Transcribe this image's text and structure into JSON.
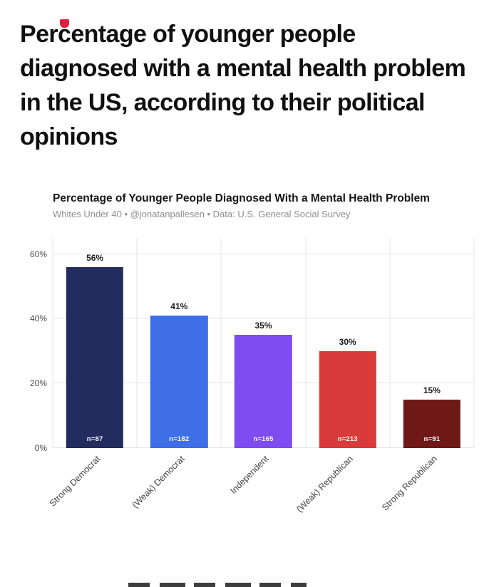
{
  "page": {
    "headline": "Percentage of younger people diagnosed with a mental health problem in the US, according to their political opinions"
  },
  "chart": {
    "title": "Percentage of Younger People Diagnosed With a Mental Health Problem",
    "subtitle": "Whites Under 40 • @jonatanpallesen • Data: U.S. General Social Survey"
  },
  "chart_data": {
    "type": "bar",
    "title": "Percentage of Younger People Diagnosed With a Mental Health Problem",
    "subtitle": "Whites Under 40 • @jonatanpallesen • Data: U.S. General Social Survey",
    "categories": [
      "Strong Democrat",
      "(Weak) Democrat",
      "Independent",
      "(Weak) Republican",
      "Strong Republican"
    ],
    "values": [
      56,
      41,
      35,
      30,
      15
    ],
    "value_labels": [
      "56%",
      "41%",
      "35%",
      "30%",
      "15%"
    ],
    "n_labels": [
      "n=87",
      "n=182",
      "n=165",
      "n=213",
      "n=91"
    ],
    "bar_colors": [
      "#232c5e",
      "#3f6fe6",
      "#7e4cf0",
      "#d93a3a",
      "#6f1818"
    ],
    "ytick_values": [
      0,
      20,
      40,
      60
    ],
    "ytick_labels": [
      "0%",
      "20%",
      "40%",
      "60%"
    ],
    "ylim": [
      0,
      65
    ],
    "xlabel": "",
    "ylabel": "",
    "grid": true,
    "legend": "none"
  }
}
